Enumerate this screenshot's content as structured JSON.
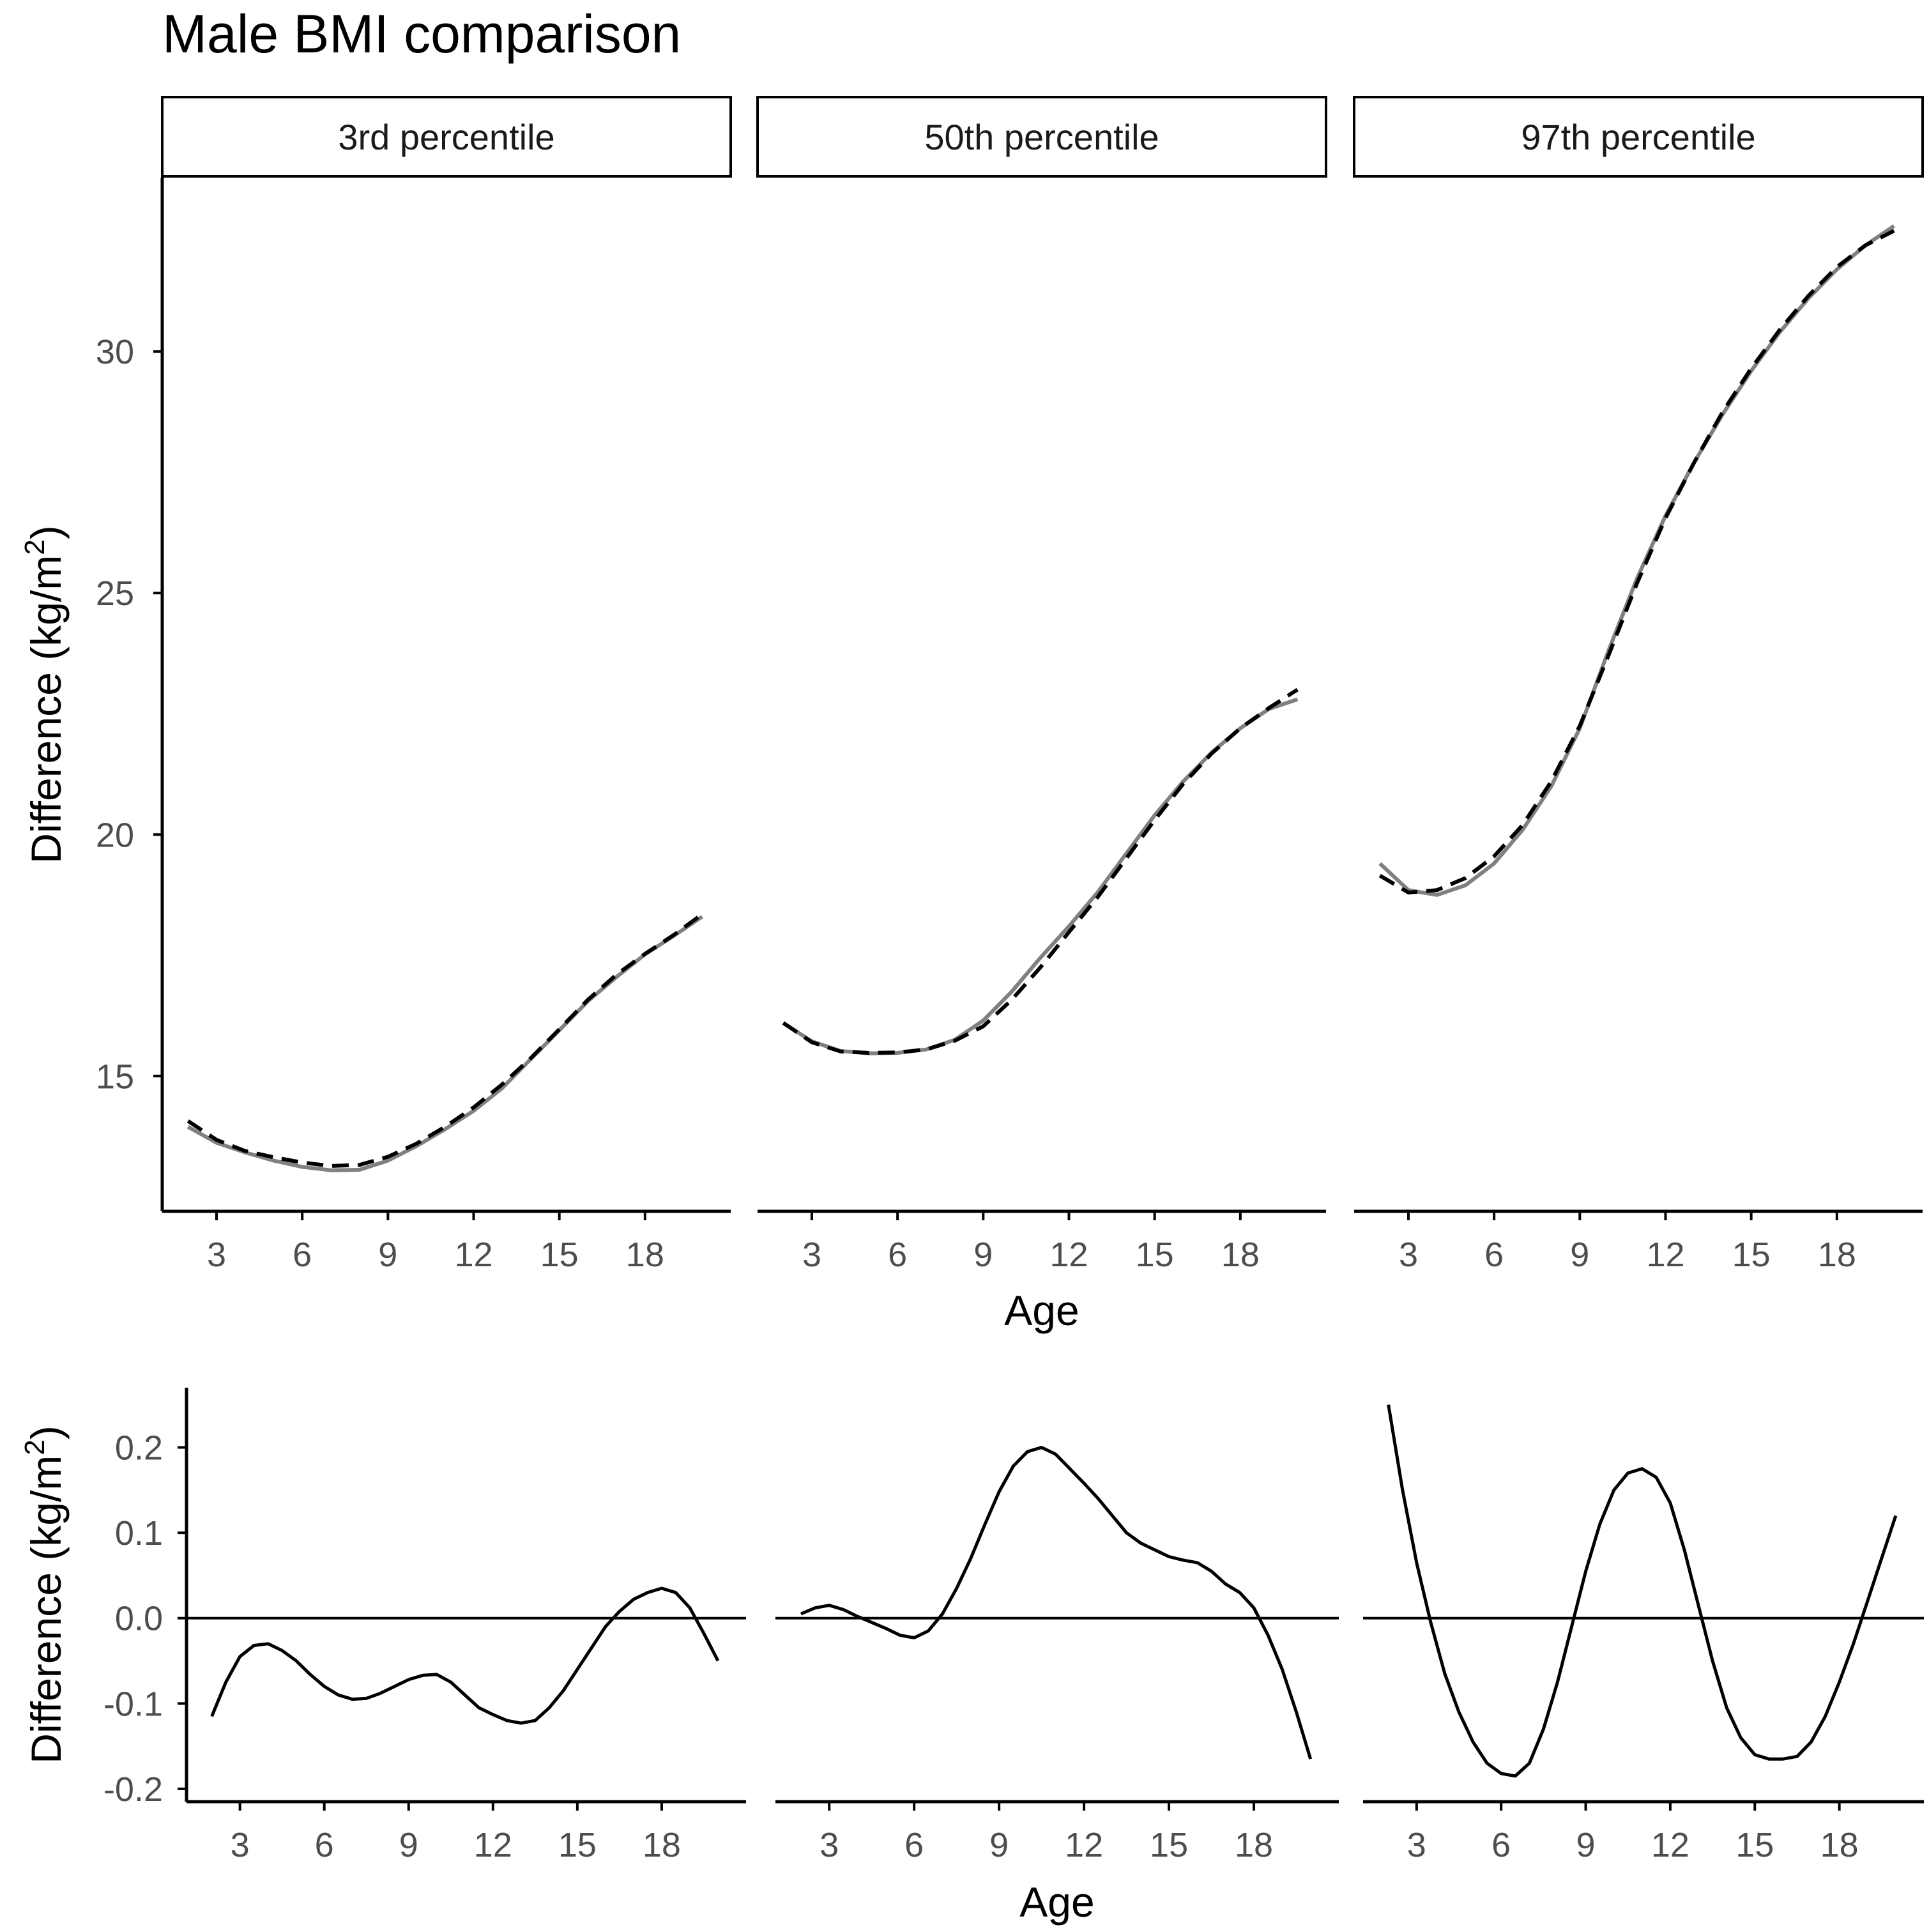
{
  "title": "Male BMI comparison",
  "colors": {
    "overlay_solid": "#808080",
    "overlay_dashed": "#000000",
    "difference": "#000000",
    "axis": "#000000"
  },
  "chart_data": [
    {
      "type": "line",
      "title": "Male BMI comparison",
      "panel_strips": [
        "3rd percentile",
        "50th percentile",
        "97th percentile"
      ],
      "xlabel": "Age",
      "ylabel": "Difference (kg/m2)",
      "ylabel_parts": {
        "main": "Difference (kg/m",
        "superscript": "2",
        "close": ")"
      },
      "xlim": [
        1.1,
        21.0
      ],
      "ylim": [
        12.2,
        33.6
      ],
      "x_ticks": [
        "3",
        "6",
        "9",
        "12",
        "15",
        "18"
      ],
      "y_ticks": [
        "15",
        "20",
        "25",
        "30"
      ],
      "grid": false,
      "panels": [
        {
          "strip": "3rd percentile",
          "series": [
            {
              "name": "solid",
              "x": [
                2,
                3,
                4,
                5,
                6,
                7,
                8,
                9,
                10,
                11,
                12,
                13,
                14,
                15,
                16,
                17,
                18,
                19,
                20
              ],
              "values": [
                13.95,
                13.62,
                13.42,
                13.25,
                13.12,
                13.05,
                13.06,
                13.25,
                13.55,
                13.9,
                14.28,
                14.75,
                15.35,
                15.95,
                16.55,
                17.05,
                17.52,
                17.9,
                18.3
              ]
            },
            {
              "name": "dashed",
              "x": [
                2,
                3,
                4,
                5,
                6,
                7,
                8,
                9,
                10,
                11,
                12,
                13,
                14,
                15,
                16,
                17,
                18,
                19,
                20
              ],
              "values": [
                14.07,
                13.68,
                13.45,
                13.32,
                13.21,
                13.14,
                13.16,
                13.33,
                13.6,
                13.95,
                14.35,
                14.83,
                15.37,
                15.97,
                16.58,
                17.1,
                17.53,
                17.92,
                18.35
              ]
            }
          ]
        },
        {
          "strip": "50th percentile",
          "series": [
            {
              "name": "solid",
              "x": [
                2,
                3,
                4,
                5,
                6,
                7,
                8,
                9,
                10,
                11,
                12,
                13,
                14,
                15,
                16,
                17,
                18,
                19,
                20
              ],
              "values": [
                16.1,
                15.72,
                15.52,
                15.47,
                15.48,
                15.55,
                15.75,
                16.15,
                16.75,
                17.45,
                18.1,
                18.8,
                19.6,
                20.4,
                21.1,
                21.7,
                22.2,
                22.6,
                22.8
              ]
            },
            {
              "name": "dashed",
              "x": [
                2,
                3,
                4,
                5,
                6,
                7,
                8,
                9,
                10,
                11,
                12,
                13,
                14,
                15,
                16,
                17,
                18,
                19,
                20
              ],
              "values": [
                16.1,
                15.7,
                15.51,
                15.48,
                15.49,
                15.55,
                15.73,
                16.03,
                16.58,
                17.25,
                17.98,
                18.7,
                19.5,
                20.3,
                21.05,
                21.68,
                22.2,
                22.62,
                23.0
              ]
            }
          ]
        },
        {
          "strip": "97th percentile",
          "series": [
            {
              "name": "solid",
              "x": [
                2,
                3,
                4,
                5,
                6,
                7,
                8,
                9,
                10,
                11,
                12,
                13,
                14,
                15,
                16,
                17,
                18,
                19,
                20
              ],
              "values": [
                19.4,
                18.85,
                18.75,
                18.95,
                19.4,
                20.1,
                21.0,
                22.2,
                23.8,
                25.3,
                26.6,
                27.7,
                28.7,
                29.6,
                30.4,
                31.1,
                31.7,
                32.2,
                32.6
              ]
            },
            {
              "name": "dashed",
              "x": [
                2,
                3,
                4,
                5,
                6,
                7,
                8,
                9,
                10,
                11,
                12,
                13,
                14,
                15,
                16,
                17,
                18,
                19,
                20
              ],
              "values": [
                19.15,
                18.8,
                18.85,
                19.1,
                19.55,
                20.2,
                21.1,
                22.25,
                23.7,
                25.2,
                26.55,
                27.7,
                28.75,
                29.65,
                30.45,
                31.15,
                31.75,
                32.2,
                32.5
              ]
            }
          ]
        }
      ]
    },
    {
      "type": "line",
      "xlabel": "Age",
      "ylabel": "Difference (kg/m2)",
      "ylabel_parts": {
        "main": "Difference (kg/m",
        "superscript": "2",
        "close": ")"
      },
      "xlim": [
        1.1,
        21.0
      ],
      "ylim": [
        -0.215,
        0.27
      ],
      "x_ticks": [
        "3",
        "6",
        "9",
        "12",
        "15",
        "18"
      ],
      "y_ticks": [
        "-0.2",
        "-0.1",
        "0.0",
        "0.1",
        "0.2"
      ],
      "reference_line": 0.0,
      "grid": false,
      "panels": [
        {
          "strip": "3rd percentile",
          "series": [
            {
              "name": "difference",
              "x": [
                2,
                2.5,
                3,
                3.5,
                4,
                4.5,
                5,
                5.5,
                6,
                6.5,
                7,
                7.5,
                8,
                8.5,
                9,
                9.5,
                10,
                10.5,
                11,
                11.5,
                12,
                12.5,
                13,
                13.5,
                14,
                14.5,
                15,
                15.5,
                16,
                16.5,
                17,
                17.5,
                18,
                18.5,
                19,
                19.5,
                20
              ],
              "values": [
                -0.115,
                -0.075,
                -0.045,
                -0.032,
                -0.03,
                -0.038,
                -0.05,
                -0.066,
                -0.08,
                -0.09,
                -0.095,
                -0.094,
                -0.088,
                -0.08,
                -0.072,
                -0.067,
                -0.066,
                -0.075,
                -0.09,
                -0.105,
                -0.113,
                -0.12,
                -0.123,
                -0.12,
                -0.105,
                -0.085,
                -0.06,
                -0.035,
                -0.01,
                0.008,
                0.022,
                0.03,
                0.035,
                0.03,
                0.012,
                -0.018,
                -0.05
              ]
            }
          ]
        },
        {
          "strip": "50th percentile",
          "series": [
            {
              "name": "difference",
              "x": [
                2,
                2.5,
                3,
                3.5,
                4,
                4.5,
                5,
                5.5,
                6,
                6.5,
                7,
                7.5,
                8,
                8.5,
                9,
                9.5,
                10,
                10.5,
                11,
                11.5,
                12,
                12.5,
                13,
                13.5,
                14,
                14.5,
                15,
                15.5,
                16,
                16.5,
                17,
                17.5,
                18,
                18.5,
                19,
                19.5,
                20
              ],
              "values": [
                0.005,
                0.012,
                0.015,
                0.01,
                0.002,
                -0.005,
                -0.012,
                -0.02,
                -0.023,
                -0.015,
                0.005,
                0.035,
                0.07,
                0.11,
                0.148,
                0.178,
                0.195,
                0.2,
                0.192,
                0.175,
                0.158,
                0.14,
                0.12,
                0.1,
                0.088,
                0.08,
                0.072,
                0.068,
                0.065,
                0.055,
                0.04,
                0.03,
                0.012,
                -0.02,
                -0.06,
                -0.11,
                -0.165
              ]
            }
          ]
        },
        {
          "strip": "97th percentile",
          "series": [
            {
              "name": "difference",
              "x": [
                2,
                2.5,
                3,
                3.5,
                4,
                4.5,
                5,
                5.5,
                6,
                6.5,
                7,
                7.5,
                8,
                8.5,
                9,
                9.5,
                10,
                10.5,
                11,
                11.5,
                12,
                12.5,
                13,
                13.5,
                14,
                14.5,
                15,
                15.5,
                16,
                16.5,
                17,
                17.5,
                18,
                18.5,
                19,
                19.5,
                20
              ],
              "values": [
                0.25,
                0.15,
                0.065,
                -0.005,
                -0.065,
                -0.11,
                -0.145,
                -0.17,
                -0.182,
                -0.185,
                -0.17,
                -0.13,
                -0.075,
                -0.01,
                0.055,
                0.11,
                0.15,
                0.17,
                0.175,
                0.165,
                0.135,
                0.08,
                0.015,
                -0.05,
                -0.105,
                -0.14,
                -0.16,
                -0.165,
                -0.165,
                -0.162,
                -0.145,
                -0.115,
                -0.075,
                -0.03,
                0.02,
                0.07,
                0.12
              ]
            }
          ]
        }
      ]
    }
  ]
}
